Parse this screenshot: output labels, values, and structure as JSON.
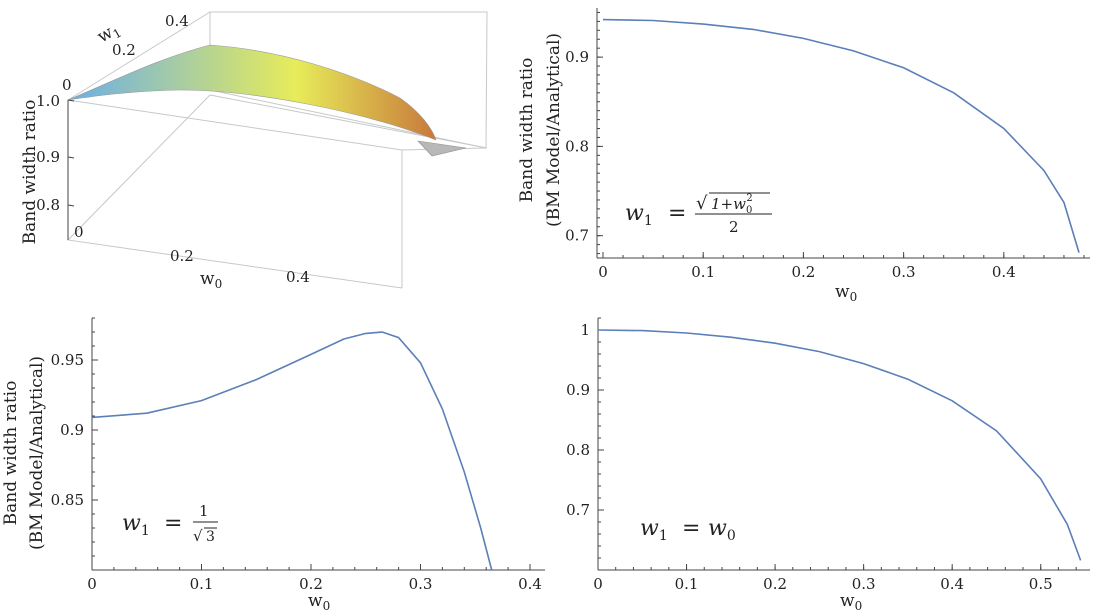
{
  "chart_data": [
    {
      "type": "surface",
      "panel": "top-left",
      "x_label": "w",
      "x_label_sub": "0",
      "y_label": "w",
      "y_label_sub": "1",
      "z_label": "Band width ratio",
      "x_ticks": [
        "0",
        "0.2",
        "0.4"
      ],
      "y_ticks": [
        "0",
        "0.2",
        "0.4"
      ],
      "z_ticks": [
        "1.0",
        "0.9",
        "0.8"
      ],
      "z_range": [
        0.75,
        1.0
      ],
      "colors": {
        "low": "#6aaee8",
        "mid": "#e7ec5a",
        "high": "#c8793a",
        "undefined_region": "#b8b8b8"
      }
    },
    {
      "type": "line",
      "panel": "top-right",
      "x_label": "w",
      "x_label_sub": "0",
      "y_label_line1": "Band width ratio",
      "y_label_line2": "(BM Model/Analytical)",
      "x_ticks": [
        "0",
        "0.1",
        "0.2",
        "0.3",
        "0.4"
      ],
      "y_ticks": [
        "0.7",
        "0.8",
        "0.9"
      ],
      "xlim": [
        0,
        0.48
      ],
      "ylim": [
        0.675,
        0.955
      ],
      "annotation": "w₁ = √(1+w₀²) / 2",
      "annotation_parts": {
        "lhs": "w",
        "lhs_sub": "1",
        "eq": "=",
        "num": "1+w",
        "num_sub": "0",
        "num_sup": "2",
        "den": "2"
      },
      "series": [
        {
          "x": [
            0,
            0.05,
            0.1,
            0.15,
            0.2,
            0.25,
            0.3,
            0.35,
            0.4,
            0.44,
            0.46,
            0.475
          ],
          "values": [
            0.942,
            0.941,
            0.937,
            0.931,
            0.921,
            0.907,
            0.888,
            0.86,
            0.82,
            0.773,
            0.737,
            0.681
          ]
        }
      ]
    },
    {
      "type": "line",
      "panel": "bottom-left",
      "x_label": "w",
      "x_label_sub": "0",
      "y_label_line1": "Band width ratio",
      "y_label_line2": "(BM Model/Analytical)",
      "x_ticks": [
        "0",
        "0.1",
        "0.2",
        "0.3",
        "0.4"
      ],
      "y_ticks": [
        "0.85",
        "0.9",
        "0.95"
      ],
      "xlim": [
        0,
        0.4
      ],
      "ylim": [
        0.8,
        0.98
      ],
      "annotation_parts": {
        "lhs": "w",
        "lhs_sub": "1",
        "eq": "=",
        "num": "1",
        "den": "3"
      },
      "series": [
        {
          "x": [
            0,
            0.05,
            0.1,
            0.15,
            0.2,
            0.23,
            0.25,
            0.265,
            0.28,
            0.3,
            0.32,
            0.34,
            0.355,
            0.365
          ],
          "values": [
            0.909,
            0.912,
            0.921,
            0.936,
            0.954,
            0.965,
            0.969,
            0.97,
            0.966,
            0.948,
            0.915,
            0.87,
            0.83,
            0.8
          ]
        }
      ]
    },
    {
      "type": "line",
      "panel": "bottom-right",
      "x_label": "w",
      "x_label_sub": "0",
      "y_label_line1": "",
      "y_label_line2": "",
      "x_ticks": [
        "0",
        "0.1",
        "0.2",
        "0.3",
        "0.4",
        "0.5"
      ],
      "y_ticks": [
        "0.7",
        "0.8",
        "0.9",
        "1"
      ],
      "xlim": [
        0,
        0.55
      ],
      "ylim": [
        0.6,
        1.02
      ],
      "annotation_parts": {
        "lhs": "w",
        "lhs_sub": "1",
        "eq": "=",
        "rhs": "w",
        "rhs_sub": "0"
      },
      "series": [
        {
          "x": [
            0,
            0.05,
            0.1,
            0.15,
            0.2,
            0.25,
            0.3,
            0.35,
            0.4,
            0.45,
            0.5,
            0.53,
            0.545
          ],
          "values": [
            1.0,
            0.999,
            0.995,
            0.988,
            0.978,
            0.964,
            0.944,
            0.918,
            0.882,
            0.832,
            0.752,
            0.676,
            0.616
          ]
        }
      ]
    }
  ]
}
